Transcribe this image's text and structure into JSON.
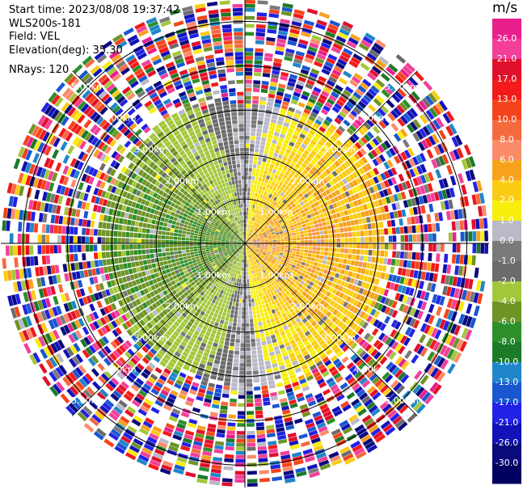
{
  "info": {
    "start_time": "Start time: 2023/08/08 19:37:42",
    "instrument": "WLS200s-181",
    "field": "Field: VEL",
    "elevation": "Elevation(deg): 35.30",
    "nrays": "NRays: 120"
  },
  "colorbar": {
    "unit": "m/s",
    "ticks": [
      "26.0",
      "21.0",
      "17.0",
      "13.0",
      "10.0",
      "8.0",
      "6.0",
      "4.0",
      "2.0",
      "1.0",
      "0.0",
      "-1.0",
      "-2.0",
      "-4.0",
      "-6.0",
      "-8.0",
      "-10.0",
      "-13.0",
      "-17.0",
      "-21.0",
      "-26.0",
      "-30.0"
    ],
    "colors": [
      "#e91e8c",
      "#f23f9a",
      "#e0102c",
      "#f21a1a",
      "#f4431c",
      "#f46a3e",
      "#fb8c6a",
      "#f6a21d",
      "#fbcc14",
      "#f8ee0b",
      "#b9b9c8",
      "#7a7a7a",
      "#6b6b6b",
      "#a3c73a",
      "#6e9426",
      "#2c8f2a",
      "#1c7a28",
      "#1f86c9",
      "#1a56d0",
      "#2222e6",
      "#1212b8",
      "#0a0a7a",
      "#000060"
    ]
  },
  "chart_data": {
    "type": "heatmap",
    "projection": "polar PPI scan",
    "field": "VEL",
    "units": "m/s",
    "nrays": 120,
    "range_rings_km": [
      1.0,
      2.0,
      3.0,
      4.0,
      5.0
    ],
    "range_ring_labels": [
      "1.00km",
      "2.00km",
      "3.00km",
      "4.00km",
      "5.00km"
    ],
    "max_range_km": 5.5,
    "valid_data_range_km": 3.2,
    "pattern": "Near range: positive velocities (yellow/orange, 1-8 m/s) on the east side, negative velocities (green, -2 to -8 m/s) on the west side, grey near zero along the north-south line; beyond ~3.2 km noisy random values spanning -30 to 26 m/s",
    "vmin": -30.0,
    "vmax": 26.0
  }
}
